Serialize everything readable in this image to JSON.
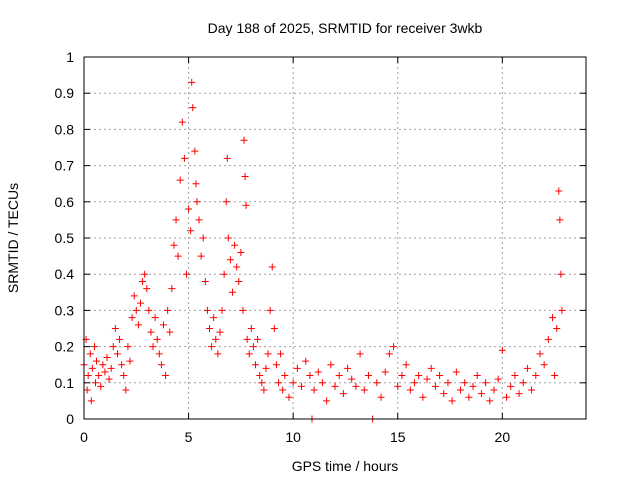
{
  "chart_data": {
    "type": "scatter",
    "title": "Day 188 of 2025, SRMTID for receiver 3wkb",
    "xlabel": "GPS time / hours",
    "ylabel": "SRMTID / TECUs",
    "xlim": [
      0,
      24
    ],
    "ylim": [
      0,
      1
    ],
    "xticks": [
      0,
      5,
      10,
      15,
      20
    ],
    "xtick_labels": [
      "0",
      "5",
      "10",
      "15",
      "20"
    ],
    "yticks": [
      0,
      0.1,
      0.2,
      0.3,
      0.4,
      0.5,
      0.6,
      0.7,
      0.8,
      0.9,
      1
    ],
    "ytick_labels": [
      "0",
      "0.1",
      "0.2",
      "0.3",
      "0.4",
      "0.5",
      "0.6",
      "0.7",
      "0.8",
      "0.9",
      "1"
    ],
    "grid": true,
    "marker": "+",
    "color": "#ff0000",
    "series": [
      {
        "name": "SRMTID",
        "points": [
          [
            0.0,
            0.15
          ],
          [
            0.1,
            0.22
          ],
          [
            0.15,
            0.08
          ],
          [
            0.2,
            0.12
          ],
          [
            0.3,
            0.18
          ],
          [
            0.35,
            0.05
          ],
          [
            0.4,
            0.14
          ],
          [
            0.5,
            0.2
          ],
          [
            0.55,
            0.1
          ],
          [
            0.6,
            0.16
          ],
          [
            0.7,
            0.12
          ],
          [
            0.8,
            0.09
          ],
          [
            0.9,
            0.15
          ],
          [
            1.0,
            0.13
          ],
          [
            1.1,
            0.17
          ],
          [
            1.2,
            0.11
          ],
          [
            1.3,
            0.14
          ],
          [
            1.4,
            0.2
          ],
          [
            1.5,
            0.25
          ],
          [
            1.6,
            0.18
          ],
          [
            1.7,
            0.22
          ],
          [
            1.8,
            0.15
          ],
          [
            1.9,
            0.12
          ],
          [
            2.0,
            0.08
          ],
          [
            2.1,
            0.2
          ],
          [
            2.2,
            0.16
          ],
          [
            2.3,
            0.28
          ],
          [
            2.4,
            0.34
          ],
          [
            2.5,
            0.3
          ],
          [
            2.6,
            0.26
          ],
          [
            2.7,
            0.32
          ],
          [
            2.8,
            0.38
          ],
          [
            2.9,
            0.4
          ],
          [
            3.0,
            0.36
          ],
          [
            3.1,
            0.3
          ],
          [
            3.2,
            0.24
          ],
          [
            3.3,
            0.2
          ],
          [
            3.4,
            0.28
          ],
          [
            3.5,
            0.22
          ],
          [
            3.6,
            0.18
          ],
          [
            3.7,
            0.15
          ],
          [
            3.8,
            0.26
          ],
          [
            3.9,
            0.12
          ],
          [
            4.0,
            0.3
          ],
          [
            4.1,
            0.24
          ],
          [
            4.2,
            0.36
          ],
          [
            4.3,
            0.48
          ],
          [
            4.4,
            0.55
          ],
          [
            4.5,
            0.45
          ],
          [
            4.6,
            0.66
          ],
          [
            4.7,
            0.82
          ],
          [
            4.8,
            0.72
          ],
          [
            4.9,
            0.4
          ],
          [
            5.0,
            0.58
          ],
          [
            5.1,
            0.52
          ],
          [
            5.15,
            0.93
          ],
          [
            5.2,
            0.86
          ],
          [
            5.3,
            0.74
          ],
          [
            5.35,
            0.65
          ],
          [
            5.4,
            0.6
          ],
          [
            5.5,
            0.55
          ],
          [
            5.6,
            0.45
          ],
          [
            5.7,
            0.5
          ],
          [
            5.8,
            0.38
          ],
          [
            5.9,
            0.3
          ],
          [
            6.0,
            0.25
          ],
          [
            6.1,
            0.2
          ],
          [
            6.2,
            0.28
          ],
          [
            6.3,
            0.22
          ],
          [
            6.4,
            0.18
          ],
          [
            6.5,
            0.24
          ],
          [
            6.6,
            0.3
          ],
          [
            6.7,
            0.4
          ],
          [
            6.8,
            0.6
          ],
          [
            6.85,
            0.72
          ],
          [
            6.9,
            0.5
          ],
          [
            7.0,
            0.44
          ],
          [
            7.1,
            0.35
          ],
          [
            7.2,
            0.48
          ],
          [
            7.3,
            0.42
          ],
          [
            7.4,
            0.38
          ],
          [
            7.5,
            0.46
          ],
          [
            7.6,
            0.3
          ],
          [
            7.65,
            0.77
          ],
          [
            7.7,
            0.67
          ],
          [
            7.75,
            0.59
          ],
          [
            7.8,
            0.22
          ],
          [
            7.9,
            0.18
          ],
          [
            8.0,
            0.25
          ],
          [
            8.1,
            0.2
          ],
          [
            8.2,
            0.15
          ],
          [
            8.3,
            0.22
          ],
          [
            8.4,
            0.12
          ],
          [
            8.5,
            0.1
          ],
          [
            8.6,
            0.08
          ],
          [
            8.7,
            0.14
          ],
          [
            8.8,
            0.18
          ],
          [
            8.9,
            0.3
          ],
          [
            9.0,
            0.42
          ],
          [
            9.1,
            0.25
          ],
          [
            9.2,
            0.15
          ],
          [
            9.3,
            0.1
          ],
          [
            9.4,
            0.18
          ],
          [
            9.5,
            0.08
          ],
          [
            9.6,
            0.12
          ],
          [
            9.8,
            0.06
          ],
          [
            10.0,
            0.1
          ],
          [
            10.2,
            0.14
          ],
          [
            10.4,
            0.09
          ],
          [
            10.6,
            0.16
          ],
          [
            10.8,
            0.12
          ],
          [
            10.9,
            0.0
          ],
          [
            11.0,
            0.08
          ],
          [
            11.2,
            0.13
          ],
          [
            11.4,
            0.1
          ],
          [
            11.6,
            0.05
          ],
          [
            11.8,
            0.15
          ],
          [
            12.0,
            0.09
          ],
          [
            12.2,
            0.12
          ],
          [
            12.4,
            0.07
          ],
          [
            12.6,
            0.14
          ],
          [
            12.8,
            0.11
          ],
          [
            13.0,
            0.09
          ],
          [
            13.2,
            0.18
          ],
          [
            13.4,
            0.08
          ],
          [
            13.6,
            0.12
          ],
          [
            13.8,
            0.0
          ],
          [
            14.0,
            0.1
          ],
          [
            14.2,
            0.06
          ],
          [
            14.4,
            0.13
          ],
          [
            14.6,
            0.18
          ],
          [
            14.8,
            0.2
          ],
          [
            15.0,
            0.09
          ],
          [
            15.2,
            0.12
          ],
          [
            15.4,
            0.15
          ],
          [
            15.6,
            0.08
          ],
          [
            15.8,
            0.1
          ],
          [
            16.0,
            0.12
          ],
          [
            16.2,
            0.06
          ],
          [
            16.4,
            0.11
          ],
          [
            16.6,
            0.14
          ],
          [
            16.8,
            0.09
          ],
          [
            17.0,
            0.12
          ],
          [
            17.2,
            0.07
          ],
          [
            17.4,
            0.1
          ],
          [
            17.6,
            0.05
          ],
          [
            17.8,
            0.13
          ],
          [
            18.0,
            0.08
          ],
          [
            18.2,
            0.1
          ],
          [
            18.4,
            0.06
          ],
          [
            18.6,
            0.09
          ],
          [
            18.8,
            0.12
          ],
          [
            19.0,
            0.07
          ],
          [
            19.2,
            0.1
          ],
          [
            19.4,
            0.05
          ],
          [
            19.6,
            0.08
          ],
          [
            19.8,
            0.11
          ],
          [
            20.0,
            0.19
          ],
          [
            20.2,
            0.06
          ],
          [
            20.4,
            0.09
          ],
          [
            20.6,
            0.12
          ],
          [
            20.8,
            0.07
          ],
          [
            21.0,
            0.1
          ],
          [
            21.2,
            0.14
          ],
          [
            21.4,
            0.08
          ],
          [
            21.6,
            0.12
          ],
          [
            21.8,
            0.18
          ],
          [
            22.0,
            0.15
          ],
          [
            22.2,
            0.22
          ],
          [
            22.4,
            0.28
          ],
          [
            22.5,
            0.12
          ],
          [
            22.6,
            0.25
          ],
          [
            22.7,
            0.63
          ],
          [
            22.75,
            0.55
          ],
          [
            22.8,
            0.4
          ],
          [
            22.85,
            0.3
          ]
        ]
      }
    ]
  }
}
